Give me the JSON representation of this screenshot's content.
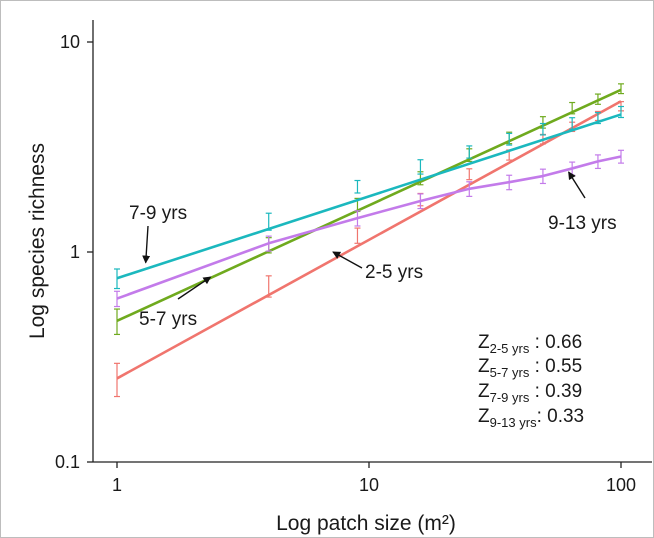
{
  "chart_data": {
    "type": "line",
    "xlabel": "Log patch size (m²)",
    "ylabel": "Log species richness",
    "x_scale": "log",
    "y_scale": "log",
    "xlim": [
      0.75,
      125
    ],
    "ylim": [
      0.1,
      11
    ],
    "x_ticks": [
      1,
      10,
      100
    ],
    "x_tick_labels": [
      "1",
      "10",
      "100"
    ],
    "y_ticks": [
      0.1,
      1,
      10
    ],
    "y_tick_labels": [
      "0.1",
      "1",
      "10"
    ],
    "grid": false,
    "x": [
      1,
      4,
      9,
      16,
      25,
      36,
      49,
      64,
      81,
      100
    ],
    "series": [
      {
        "id": "s25",
        "name": "2-5 yrs",
        "color": "#F0756E",
        "points": [
          0.25,
          0.69,
          1.2,
          1.78,
          2.35,
          2.9,
          3.45,
          3.95,
          4.45,
          4.95
        ],
        "err": [
          0.045,
          0.08,
          0.1,
          0.12,
          0.14,
          0.16,
          0.18,
          0.2,
          0.22,
          0.25
        ],
        "fit": {
          "intercept": 0.25,
          "slope": 0.66
        }
      },
      {
        "id": "s57",
        "name": "5-7 yrs",
        "color": "#6FAA1E",
        "points": [
          0.47,
          1.08,
          1.68,
          2.25,
          2.9,
          3.5,
          4.15,
          4.85,
          5.35,
          6.0
        ],
        "err": [
          0.065,
          0.09,
          0.12,
          0.16,
          0.2,
          0.22,
          0.26,
          0.3,
          0.3,
          0.32
        ],
        "fit": {
          "intercept": 0.47,
          "slope": 0.55
        }
      },
      {
        "id": "s79",
        "name": "7-9 yrs",
        "color": "#1BB8BE",
        "points": [
          0.75,
          1.4,
          2.05,
          2.55,
          3.0,
          3.45,
          3.85,
          4.1,
          4.35,
          4.65
        ],
        "err": [
          0.08,
          0.13,
          0.14,
          0.2,
          0.2,
          0.22,
          0.24,
          0.26,
          0.26,
          0.28
        ],
        "fit": {
          "intercept": 0.75,
          "slope": 0.39
        }
      },
      {
        "id": "s913",
        "name": "9-13 yrs",
        "color": "#C37BEA",
        "points": [
          0.6,
          1.1,
          1.45,
          1.75,
          2.0,
          2.15,
          2.3,
          2.5,
          2.7,
          2.85
        ],
        "err": [
          0.05,
          0.09,
          0.12,
          0.14,
          0.16,
          0.17,
          0.18,
          0.18,
          0.2,
          0.2
        ]
      }
    ],
    "annotations": [
      {
        "id": "a79",
        "text": "7-9 yrs",
        "arrow_to": [
          1.3,
          0.89
        ]
      },
      {
        "id": "a57",
        "text": "5-7 yrs",
        "arrow_to": [
          2.35,
          0.76
        ]
      },
      {
        "id": "a25",
        "text": "2-5 yrs",
        "arrow_to": [
          7.2,
          1.0
        ]
      },
      {
        "id": "a913",
        "text": "9-13 yrs",
        "arrow_to": [
          62,
          2.4
        ]
      }
    ],
    "z_values": [
      {
        "z": "Z",
        "sub": "2-5 yrs",
        "value": " : 0.66"
      },
      {
        "z": "Z",
        "sub": "5-7 yrs",
        "value": " : 0.55"
      },
      {
        "z": "Z",
        "sub": "7-9 yrs",
        "value": " : 0.39"
      },
      {
        "z": "Z",
        "sub": "9-13 yrs",
        "value": ": 0.33"
      }
    ]
  }
}
